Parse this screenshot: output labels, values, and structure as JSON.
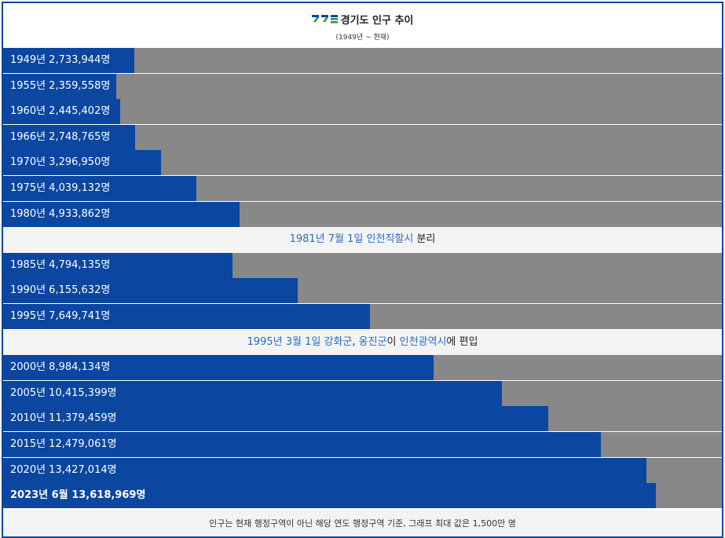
{
  "header": {
    "title": "경기도 인구 추이",
    "subtitle": "(1949년 ~ 현재)"
  },
  "colors": {
    "bar": "#0b46a0",
    "track": "#888888",
    "note_background": "#f3f3f3",
    "link": "#2a6bc1"
  },
  "chart_data": {
    "type": "bar",
    "orientation": "horizontal",
    "title": "경기도 인구 추이",
    "subtitle": "(1949년 ~ 현재)",
    "xlim": [
      0,
      15000000
    ],
    "categories": [
      "1949년",
      "1955년",
      "1960년",
      "1966년",
      "1970년",
      "1975년",
      "1980년",
      "1985년",
      "1990년",
      "1995년",
      "2000년",
      "2005년",
      "2010년",
      "2015년",
      "2020년",
      "2023년 6월"
    ],
    "values": [
      2733944,
      2359558,
      2445402,
      2748765,
      3296950,
      4039132,
      4933862,
      4794135,
      6155632,
      7649741,
      8984134,
      10415399,
      11379459,
      12479061,
      13427014,
      13618969
    ],
    "labels": [
      "1949년 2,733,944명",
      "1955년 2,359,558명",
      "1960년 2,445,402명",
      "1966년 2,748,765명",
      "1970년 3,296,950명",
      "1975년 4,039,132명",
      "1980년 4,933,862명",
      "1985년 4,794,135명",
      "1990년 6,155,632명",
      "1995년 7,649,741명",
      "2000년 8,984,134명",
      "2005년 10,415,399명",
      "2010년 11,379,459명",
      "2015년 12,479,061명",
      "2020년 13,427,014명",
      "2023년 6월 13,618,969명"
    ],
    "annotations": [
      {
        "after": "1980년",
        "parts": [
          {
            "text": "1981년 7월 1일",
            "link": true
          },
          {
            "text": " ",
            "link": false
          },
          {
            "text": "인천직할시",
            "link": true
          },
          {
            "text": " 분리",
            "link": false
          }
        ]
      },
      {
        "after": "1995년",
        "parts": [
          {
            "text": "1995년 3월 1일",
            "link": true
          },
          {
            "text": " ",
            "link": false
          },
          {
            "text": "강화군",
            "link": true
          },
          {
            "text": ", ",
            "link": false
          },
          {
            "text": "옹진군",
            "link": true
          },
          {
            "text": "이 ",
            "link": false
          },
          {
            "text": "인천광역시",
            "link": true
          },
          {
            "text": "에 편입",
            "link": false
          }
        ]
      }
    ],
    "footnote": "인구는 현재 행정구역이 아닌 해당 연도 행정구역 기준, 그래프 최대 값은 1,500만 명"
  }
}
